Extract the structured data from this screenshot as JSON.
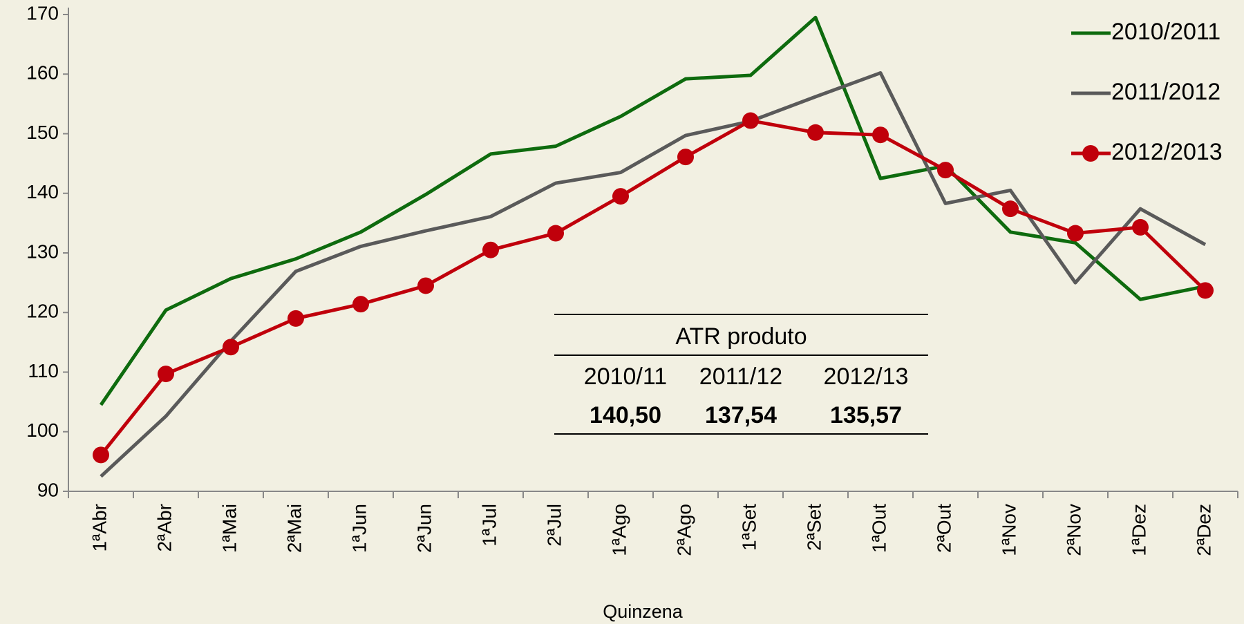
{
  "chart_data": {
    "type": "line",
    "x_label": "Quinzena",
    "categories": [
      "1ªAbr",
      "2ªAbr",
      "1ªMai",
      "2ªMai",
      "1ªJun",
      "2ªJun",
      "1ªJul",
      "2ªJul",
      "1ªAgo",
      "2ªAgo",
      "1ªSet",
      "2ªSet",
      "1ªOut",
      "2ªOut",
      "1ªNov",
      "2ªNov",
      "1ªDez",
      "2ªDez"
    ],
    "series": [
      {
        "name": "2010/2011",
        "color": "#0e6b0e",
        "markers": false,
        "values": [
          104.5,
          120.4,
          125.7,
          129,
          133.5,
          139.8,
          146.6,
          147.9,
          152.9,
          159.2,
          159.8,
          169.5,
          142.5,
          144.6,
          133.5,
          131.7,
          122.2,
          124.4
        ]
      },
      {
        "name": "2011/2012",
        "color": "#5a5a5a",
        "markers": false,
        "values": [
          92.5,
          102.6,
          115.2,
          126.9,
          131.1,
          133.7,
          136.1,
          141.7,
          143.5,
          149.7,
          152.1,
          156.2,
          160.2,
          138.3,
          140.5,
          125,
          137.4,
          131.4
        ]
      },
      {
        "name": "2012/2013",
        "color": "#c0000b",
        "markers": true,
        "values": [
          96.1,
          109.7,
          114.2,
          119,
          121.4,
          124.5,
          130.5,
          133.3,
          139.5,
          146.1,
          152.2,
          150.2,
          149.8,
          143.9,
          137.4,
          133.3,
          134.3,
          123.7
        ]
      }
    ],
    "ylim": [
      90,
      170
    ],
    "yticks": [
      90,
      100,
      110,
      120,
      130,
      140,
      150,
      160,
      170
    ],
    "grid": false,
    "legend": "top-right",
    "table": {
      "title": "ATR produto",
      "headers": [
        "2010/11",
        "2011/12",
        "2012/13"
      ],
      "cells": [
        "140,50",
        "137,54",
        "135,57"
      ]
    }
  }
}
